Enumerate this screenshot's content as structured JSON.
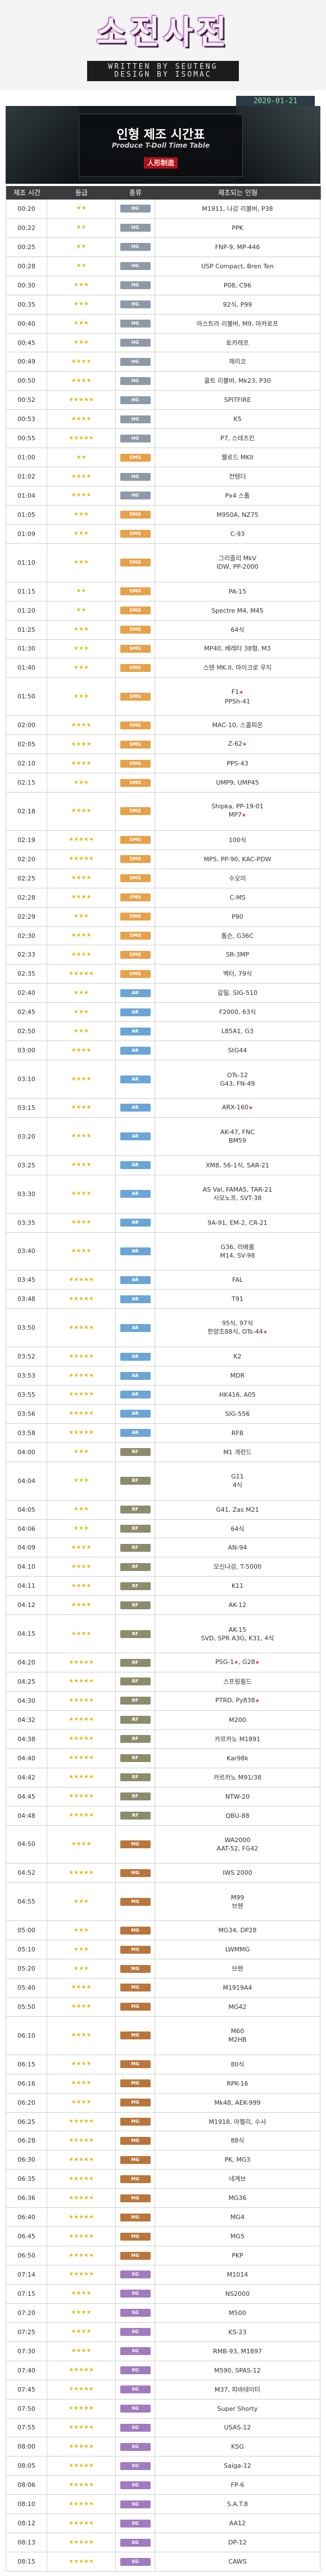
{
  "header": {
    "logo": "소전사전",
    "written_by": "WRITTEN BY SEUTENG",
    "design_by": "DESIGN BY ISOMAC",
    "date": "2020-01-21"
  },
  "banner": {
    "title": "인형 제조 시간표",
    "subtitle": "Produce T-Doll Time Table",
    "red_tag": "人形制造"
  },
  "columns": [
    "제조 시간",
    "등급",
    "종류",
    "제조되는 인형"
  ],
  "type_labels": {
    "HG": "HG",
    "SMG": "SMG",
    "AR": "AR",
    "RF": "RF",
    "MG": "MG",
    "SG": "SG"
  },
  "rows": [
    {
      "time": "00:20",
      "stars": 2,
      "type": "HG",
      "names": [
        "M1911, 나강 리볼버, P38"
      ]
    },
    {
      "time": "00:22",
      "stars": 2,
      "type": "HG",
      "names": [
        "PPK"
      ]
    },
    {
      "time": "00:25",
      "stars": 2,
      "type": "HG",
      "names": [
        "FNP-9, MP-446"
      ]
    },
    {
      "time": "00:28",
      "stars": 2,
      "type": "HG",
      "names": [
        "USP Compact, Bren Ten"
      ]
    },
    {
      "time": "00:30",
      "stars": 3,
      "type": "HG",
      "names": [
        "P08, C96"
      ]
    },
    {
      "time": "00:35",
      "stars": 3,
      "type": "HG",
      "names": [
        "92식, P99"
      ]
    },
    {
      "time": "00:40",
      "stars": 3,
      "type": "HG",
      "names": [
        "아스트라 리볼버, M9, 마카로프"
      ]
    },
    {
      "time": "00:45",
      "stars": 3,
      "type": "HG",
      "names": [
        "토카레프"
      ]
    },
    {
      "time": "00:49",
      "stars": 4,
      "type": "HG",
      "names": [
        "제리코"
      ]
    },
    {
      "time": "00:50",
      "stars": 4,
      "type": "HG",
      "names": [
        "콜트 리볼버, Mk23, P30"
      ]
    },
    {
      "time": "00:52",
      "stars": 5,
      "type": "HG",
      "names": [
        "SPITFIRE"
      ]
    },
    {
      "time": "00:53",
      "stars": 4,
      "type": "HG",
      "names": [
        "K5"
      ]
    },
    {
      "time": "00:55",
      "stars": 5,
      "type": "HG",
      "names": [
        "P7, 스테츠킨"
      ]
    },
    {
      "time": "01:00",
      "stars": 2,
      "type": "SMG",
      "names": [
        "웰로드 MKII"
      ]
    },
    {
      "time": "01:02",
      "stars": 4,
      "type": "HG",
      "names": [
        "컨텐더"
      ]
    },
    {
      "time": "01:04",
      "stars": 4,
      "type": "HG",
      "names": [
        "Px4 스톰"
      ]
    },
    {
      "time": "01:05",
      "stars": 3,
      "type": "SMG",
      "names": [
        "M950A, NZ75"
      ]
    },
    {
      "time": "01:09",
      "stars": 3,
      "type": "SMG",
      "names": [
        "C-93"
      ]
    },
    {
      "time": "01:10",
      "stars": 3,
      "type": "SMG",
      "names": [
        "그리즐리 MkV",
        "IDW, PP-2000"
      ],
      "span": 2
    },
    {
      "time": "01:15",
      "stars": 2,
      "type": "SMG",
      "names": [
        "PA-15"
      ]
    },
    {
      "time": "01:20",
      "stars": 2,
      "type": "SMG",
      "names": [
        "Spectre M4, M45"
      ]
    },
    {
      "time": "01:25",
      "stars": 3,
      "type": "SMG",
      "names": [
        "64식"
      ]
    },
    {
      "time": "01:30",
      "stars": 3,
      "type": "SMG",
      "names": [
        "MP40, 베레타 38형, M3"
      ]
    },
    {
      "time": "01:40",
      "stars": 3,
      "type": "SMG",
      "names": [
        "스텐 MK.II, 마이크로 우지"
      ]
    },
    {
      "time": "01:50",
      "stars": 3,
      "type": "SMG",
      "names": [
        "F1",
        "PPSh-41"
      ],
      "span": 2,
      "pk": [
        0
      ]
    },
    {
      "time": "02:00",
      "stars": 4,
      "type": "SMG",
      "names": [
        "MAC-10, 스콜피온"
      ]
    },
    {
      "time": "02:05",
      "stars": 4,
      "type": "SMG",
      "names": [
        "Z-62"
      ],
      "pk": [
        0
      ]
    },
    {
      "time": "02:10",
      "stars": 4,
      "type": "SMG",
      "names": [
        "PPS-43"
      ]
    },
    {
      "time": "02:15",
      "stars": 3,
      "type": "SMG",
      "names": [
        "UMP9, UMP45"
      ]
    },
    {
      "time": "02:18",
      "stars": 4,
      "type": "SMG",
      "names": [
        "Shipka, PP-19-01",
        "MP7"
      ],
      "span": 2,
      "pk": [
        1
      ]
    },
    {
      "time": "02:19",
      "stars": 5,
      "type": "SMG",
      "names": [
        "100식"
      ]
    },
    {
      "time": "02:20",
      "stars": 5,
      "type": "SMG",
      "names": [
        "MP5, PP-90, KAC-PDW"
      ]
    },
    {
      "time": "02:25",
      "stars": 4,
      "type": "SMG",
      "names": [
        "수오미"
      ]
    },
    {
      "time": "02:28",
      "stars": 4,
      "type": "SMG",
      "names": [
        "C-MS"
      ]
    },
    {
      "time": "02:29",
      "stars": 3,
      "type": "SMG",
      "names": [
        "P90"
      ]
    },
    {
      "time": "02:30",
      "stars": 4,
      "type": "SMG",
      "names": [
        "톰슨, G36C"
      ]
    },
    {
      "time": "02:33",
      "stars": 4,
      "type": "SMG",
      "names": [
        "SR-3MP"
      ]
    },
    {
      "time": "02:35",
      "stars": 5,
      "type": "SMG",
      "names": [
        "벡터, 79식"
      ]
    },
    {
      "time": "02:40",
      "stars": 3,
      "type": "AR",
      "names": [
        "갈릴, SIG-510"
      ]
    },
    {
      "time": "02:45",
      "stars": 3,
      "type": "AR",
      "names": [
        "F2000, 63식"
      ]
    },
    {
      "time": "02:50",
      "stars": 3,
      "type": "AR",
      "names": [
        "L85A1, G3"
      ]
    },
    {
      "time": "03:00",
      "stars": 4,
      "type": "AR",
      "names": [
        "StG44"
      ]
    },
    {
      "time": "03:10",
      "stars": 4,
      "type": "AR",
      "names": [
        "OTs-12",
        "G43, FN-49"
      ],
      "span": 2
    },
    {
      "time": "03:15",
      "stars": 4,
      "type": "AR",
      "names": [
        "ARX-160"
      ],
      "pk": [
        0
      ]
    },
    {
      "time": "03:20",
      "stars": 4,
      "type": "AR",
      "names": [
        "AK-47, FNC",
        "BM59"
      ],
      "span": 2
    },
    {
      "time": "03:25",
      "stars": 4,
      "type": "AR",
      "names": [
        "XM8, 56-1식, SAR-21"
      ]
    },
    {
      "time": "03:30",
      "stars": 4,
      "type": "AR",
      "names": [
        "AS Val, FAMAS, TAR-21",
        "시모노프, SVT-38"
      ],
      "span": 2
    },
    {
      "time": "03:35",
      "stars": 4,
      "type": "AR",
      "names": [
        "9A-91, EM-2, CR-21"
      ]
    },
    {
      "time": "03:40",
      "stars": 4,
      "type": "AR",
      "names": [
        "G36, 리베롤",
        "M14, SV-98"
      ],
      "span": 2
    },
    {
      "time": "03:45",
      "stars": 5,
      "type": "AR",
      "names": [
        "FAL"
      ]
    },
    {
      "time": "03:48",
      "stars": 5,
      "type": "AR",
      "names": [
        "T91"
      ]
    },
    {
      "time": "03:50",
      "stars": 5,
      "type": "AR",
      "names": [
        "95식, 97식",
        "한양조88식, OTs-44"
      ],
      "span": 2,
      "pk": [
        1
      ]
    },
    {
      "time": "03:52",
      "stars": 5,
      "type": "AR",
      "names": [
        "K2"
      ]
    },
    {
      "time": "03:53",
      "stars": 5,
      "type": "AR",
      "names": [
        "MDR"
      ]
    },
    {
      "time": "03:55",
      "stars": 5,
      "type": "AR",
      "names": [
        "HK416, A05"
      ]
    },
    {
      "time": "03:56",
      "stars": 5,
      "type": "AR",
      "names": [
        "SIG-556"
      ]
    },
    {
      "time": "03:58",
      "stars": 5,
      "type": "AR",
      "names": [
        "RFB"
      ]
    },
    {
      "time": "04:00",
      "stars": 3,
      "type": "RF",
      "names": [
        "M1 개런드"
      ]
    },
    {
      "time": "04:04",
      "stars": 3,
      "type": "RF",
      "names": [
        "G11",
        "4식"
      ],
      "span": 2
    },
    {
      "time": "04:05",
      "stars": 3,
      "type": "RF",
      "names": [
        "G41, Zas M21"
      ]
    },
    {
      "time": "04:06",
      "stars": 3,
      "type": "RF",
      "names": [
        "64식"
      ]
    },
    {
      "time": "04:09",
      "stars": 4,
      "type": "RF",
      "names": [
        "AN-94"
      ]
    },
    {
      "time": "04:10",
      "stars": 4,
      "type": "RF",
      "names": [
        "모신나강, T-5000"
      ]
    },
    {
      "time": "04:11",
      "stars": 4,
      "type": "RF",
      "names": [
        "K11"
      ]
    },
    {
      "time": "04:12",
      "stars": 4,
      "type": "RF",
      "names": [
        "AK-12"
      ]
    },
    {
      "time": "04:15",
      "stars": 4,
      "type": "RF",
      "names": [
        "AK-15",
        "SVD, SPR A3G, K31, 4식"
      ],
      "span": 2
    },
    {
      "time": "04:20",
      "stars": 5,
      "type": "RF",
      "names": [
        "PSG-1",
        "G28"
      ],
      "pk": [
        0,
        1
      ]
    },
    {
      "time": "04:25",
      "stars": 5,
      "type": "RF",
      "names": [
        "스프링필드"
      ]
    },
    {
      "time": "04:30",
      "stars": 5,
      "type": "RF",
      "names": [
        "PTRD, Py838"
      ],
      "pk": [
        0
      ]
    },
    {
      "time": "04:32",
      "stars": 5,
      "type": "RF",
      "names": [
        "M200"
      ]
    },
    {
      "time": "04:38",
      "stars": 5,
      "type": "RF",
      "names": [
        "카르카노 M1891"
      ]
    },
    {
      "time": "04:40",
      "stars": 5,
      "type": "RF",
      "names": [
        "Kar98k"
      ]
    },
    {
      "time": "04:42",
      "stars": 5,
      "type": "RF",
      "names": [
        "카르카노 M91/38"
      ]
    },
    {
      "time": "04:45",
      "stars": 5,
      "type": "RF",
      "names": [
        "NTW-20"
      ]
    },
    {
      "time": "04:48",
      "stars": 5,
      "type": "RF",
      "names": [
        "QBU-88"
      ]
    },
    {
      "time": "04:50",
      "stars": 4,
      "type": "MG",
      "names": [
        "WA2000",
        "AAT-52, FG42"
      ],
      "span": 2
    },
    {
      "time": "04:52",
      "stars": 5,
      "type": "MG",
      "names": [
        "IWS 2000"
      ]
    },
    {
      "time": "04:55",
      "stars": 3,
      "type": "MG",
      "names": [
        "M99",
        "브렌"
      ],
      "span": 2
    },
    {
      "time": "05:00",
      "stars": 3,
      "type": "MG",
      "names": [
        "MG34, DP28"
      ]
    },
    {
      "time": "05:10",
      "stars": 3,
      "type": "MG",
      "names": [
        "LWMMG"
      ]
    },
    {
      "time": "05:20",
      "stars": 3,
      "type": "MG",
      "names": [
        "브렌"
      ]
    },
    {
      "time": "05:40",
      "stars": 4,
      "type": "MG",
      "names": [
        "M1919A4"
      ]
    },
    {
      "time": "05:50",
      "stars": 4,
      "type": "MG",
      "names": [
        "MG42"
      ]
    },
    {
      "time": "06:10",
      "stars": 4,
      "type": "MG",
      "names": [
        "M60",
        "M2HB"
      ],
      "span": 2
    },
    {
      "time": "06:15",
      "stars": 4,
      "type": "MG",
      "names": [
        "80식"
      ]
    },
    {
      "time": "06:16",
      "stars": 4,
      "type": "MG",
      "names": [
        "RPK-16"
      ]
    },
    {
      "time": "06:20",
      "stars": 4,
      "type": "MG",
      "names": [
        "Mk48, AEK-999"
      ]
    },
    {
      "time": "06:25",
      "stars": 5,
      "type": "MG",
      "names": [
        "M1918, 아멜리, 수사"
      ]
    },
    {
      "time": "06:28",
      "stars": 5,
      "type": "MG",
      "names": [
        "88식"
      ]
    },
    {
      "time": "06:30",
      "stars": 5,
      "type": "MG",
      "names": [
        "PK, MG3"
      ]
    },
    {
      "time": "06:35",
      "stars": 5,
      "type": "MG",
      "names": [
        "네게브"
      ]
    },
    {
      "time": "06:36",
      "stars": 5,
      "type": "MG",
      "names": [
        "MG36"
      ]
    },
    {
      "time": "06:40",
      "stars": 5,
      "type": "MG",
      "names": [
        "MG4"
      ]
    },
    {
      "time": "06:45",
      "stars": 5,
      "type": "MG",
      "names": [
        "MG5"
      ]
    },
    {
      "time": "06:50",
      "stars": 5,
      "type": "MG",
      "names": [
        "PKP"
      ]
    },
    {
      "time": "07:14",
      "stars": 5,
      "type": "SG",
      "names": [
        "M1014"
      ]
    },
    {
      "time": "07:15",
      "stars": 4,
      "type": "SG",
      "names": [
        "NS2000"
      ]
    },
    {
      "time": "07:20",
      "stars": 4,
      "type": "SG",
      "names": [
        "M500"
      ]
    },
    {
      "time": "07:25",
      "stars": 4,
      "type": "SG",
      "names": [
        "KS-23"
      ]
    },
    {
      "time": "07:30",
      "stars": 4,
      "type": "SG",
      "names": [
        "RMB-93, M1897"
      ]
    },
    {
      "time": "07:40",
      "stars": 5,
      "type": "SG",
      "names": [
        "M590, SPAS-12"
      ]
    },
    {
      "time": "07:45",
      "stars": 5,
      "type": "SG",
      "names": [
        "M37, 피바테이터"
      ]
    },
    {
      "time": "07:50",
      "stars": 5,
      "type": "SG",
      "names": [
        "Super Shorty"
      ]
    },
    {
      "time": "07:55",
      "stars": 5,
      "type": "SG",
      "names": [
        "USAS-12"
      ]
    },
    {
      "time": "08:00",
      "stars": 5,
      "type": "SG",
      "names": [
        "KSG"
      ]
    },
    {
      "time": "08:05",
      "stars": 5,
      "type": "SG",
      "names": [
        "Saiga-12"
      ]
    },
    {
      "time": "08:06",
      "stars": 5,
      "type": "SG",
      "names": [
        "FP-6"
      ]
    },
    {
      "time": "08:10",
      "stars": 5,
      "type": "SG",
      "names": [
        "S.A.T.8"
      ]
    },
    {
      "time": "08:12",
      "stars": 5,
      "type": "SG",
      "names": [
        "AA12"
      ]
    },
    {
      "time": "08:13",
      "stars": 5,
      "type": "SG",
      "names": [
        "DP-12"
      ]
    },
    {
      "time": "08:15",
      "stars": 5,
      "type": "SG",
      "names": [
        "CAWS"
      ]
    }
  ],
  "pickup_mark": "★"
}
